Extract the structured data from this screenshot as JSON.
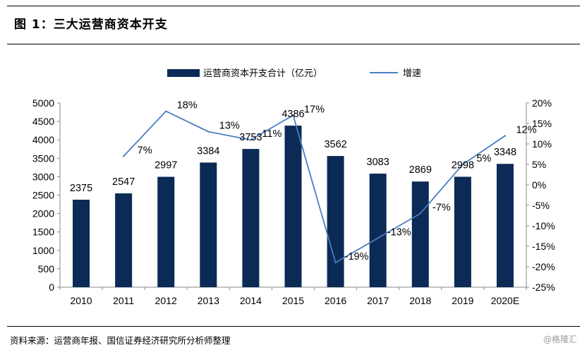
{
  "figure_title": "图 1：三大运营商资本开支",
  "source_note": "资料来源：运营商年报、国信证券经济研究所分析师整理",
  "watermark": "@格隆汇",
  "colors": {
    "bar": "#0b2a55",
    "line": "#4a7ec1",
    "text": "#000000",
    "axis": "#888888"
  },
  "chart_data": {
    "type": "bar+line",
    "categories": [
      "2010",
      "2011",
      "2012",
      "2013",
      "2014",
      "2015",
      "2016",
      "2017",
      "2018",
      "2019",
      "2020E"
    ],
    "series": [
      {
        "name": "运营商资本开支合计（亿元）",
        "type": "bar",
        "axis": "left",
        "values": [
          2375,
          2547,
          2997,
          3384,
          3753,
          4386,
          3562,
          3083,
          2869,
          2998,
          3348
        ],
        "labels": [
          "2375",
          "2547",
          "2997",
          "3384",
          "3753",
          "4386",
          "3562",
          "3083",
          "2869",
          "2998",
          "3348"
        ]
      },
      {
        "name": "增速",
        "type": "line",
        "axis": "right",
        "values": [
          null,
          7,
          18,
          13,
          11,
          17,
          -19,
          -13,
          -7,
          5,
          12
        ],
        "labels": [
          "",
          "7%",
          "18%",
          "13%",
          "11%",
          "17%",
          "-19%",
          "-13%",
          "-7%",
          "5%",
          "12%"
        ]
      }
    ],
    "left_axis": {
      "ylim": [
        0,
        5000
      ],
      "ticks": [
        "0",
        "500",
        "1000",
        "1500",
        "2000",
        "2500",
        "3000",
        "3500",
        "4000",
        "4500",
        "5000"
      ]
    },
    "right_axis": {
      "ylim": [
        -25,
        20
      ],
      "ticks": [
        "-25%",
        "-20%",
        "-15%",
        "-10%",
        "-5%",
        "0%",
        "5%",
        "10%",
        "15%",
        "20%"
      ]
    },
    "legend": [
      "运营商资本开支合计（亿元）",
      "增速"
    ],
    "legend_position": "top"
  }
}
